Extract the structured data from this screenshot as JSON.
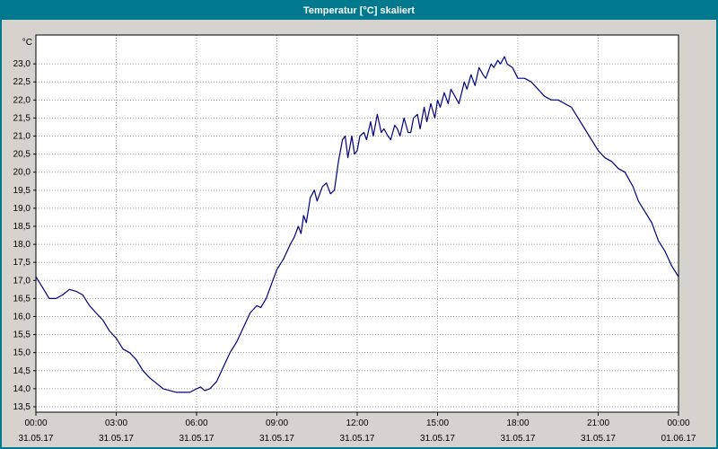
{
  "window": {
    "title": "Temperatur [°C] skaliert",
    "title_bg": "#00798F",
    "body_bg": "#D6D3CE",
    "border_color": "#00798F"
  },
  "chart_data": {
    "type": "line",
    "title": "Temperatur [°C] skaliert",
    "y_unit_label": "°C",
    "grid": "dotted",
    "plot_bg": "#FFFFFF",
    "grid_color": "#9A9A9A",
    "ylim": [
      13.35,
      23.8
    ],
    "xlim_hours": [
      0,
      24
    ],
    "y_ticks": [
      {
        "value": 23.0,
        "label": "23,0"
      },
      {
        "value": 22.5,
        "label": "22,5"
      },
      {
        "value": 22.0,
        "label": "22,0"
      },
      {
        "value": 21.5,
        "label": "21,5"
      },
      {
        "value": 21.0,
        "label": "21,0"
      },
      {
        "value": 20.5,
        "label": "20,5"
      },
      {
        "value": 20.0,
        "label": "20,0"
      },
      {
        "value": 19.5,
        "label": "19,5"
      },
      {
        "value": 19.0,
        "label": "19,0"
      },
      {
        "value": 18.5,
        "label": "18,5"
      },
      {
        "value": 18.0,
        "label": "18,0"
      },
      {
        "value": 17.5,
        "label": "17,5"
      },
      {
        "value": 17.0,
        "label": "17,0"
      },
      {
        "value": 16.5,
        "label": "16,5"
      },
      {
        "value": 16.0,
        "label": "16,0"
      },
      {
        "value": 15.5,
        "label": "15,5"
      },
      {
        "value": 15.0,
        "label": "15,0"
      },
      {
        "value": 14.5,
        "label": "14,5"
      },
      {
        "value": 14.0,
        "label": "14,0"
      },
      {
        "value": 13.5,
        "label": "13,5"
      }
    ],
    "x_ticks": [
      {
        "hour": 0,
        "time": "00:00",
        "date": "31.05.17"
      },
      {
        "hour": 3,
        "time": "03:00",
        "date": "31.05.17"
      },
      {
        "hour": 6,
        "time": "06:00",
        "date": "31.05.17"
      },
      {
        "hour": 9,
        "time": "09:00",
        "date": "31.05.17"
      },
      {
        "hour": 12,
        "time": "12:00",
        "date": "31.05.17"
      },
      {
        "hour": 15,
        "time": "15:00",
        "date": "31.05.17"
      },
      {
        "hour": 18,
        "time": "18:00",
        "date": "31.05.17"
      },
      {
        "hour": 21,
        "time": "21:00",
        "date": "31.05.17"
      },
      {
        "hour": 24,
        "time": "00:00",
        "date": "01.06.17"
      }
    ],
    "series": [
      {
        "name": "Temperatur",
        "color": "#000080",
        "points": [
          [
            0,
            17.1
          ],
          [
            0.25,
            16.8
          ],
          [
            0.5,
            16.5
          ],
          [
            0.75,
            16.5
          ],
          [
            1,
            16.6
          ],
          [
            1.25,
            16.75
          ],
          [
            1.5,
            16.7
          ],
          [
            1.75,
            16.6
          ],
          [
            2,
            16.3
          ],
          [
            2.25,
            16.1
          ],
          [
            2.5,
            15.9
          ],
          [
            2.75,
            15.6
          ],
          [
            3,
            15.4
          ],
          [
            3.25,
            15.1
          ],
          [
            3.5,
            15.0
          ],
          [
            3.75,
            14.8
          ],
          [
            4,
            14.5
          ],
          [
            4.25,
            14.3
          ],
          [
            4.5,
            14.15
          ],
          [
            4.75,
            14.0
          ],
          [
            5,
            13.95
          ],
          [
            5.25,
            13.9
          ],
          [
            5.5,
            13.9
          ],
          [
            5.75,
            13.9
          ],
          [
            6,
            14.0
          ],
          [
            6.15,
            14.05
          ],
          [
            6.3,
            13.95
          ],
          [
            6.5,
            14.0
          ],
          [
            6.75,
            14.2
          ],
          [
            7,
            14.6
          ],
          [
            7.25,
            15.0
          ],
          [
            7.5,
            15.3
          ],
          [
            7.75,
            15.7
          ],
          [
            8,
            16.1
          ],
          [
            8.25,
            16.3
          ],
          [
            8.4,
            16.25
          ],
          [
            8.6,
            16.5
          ],
          [
            8.8,
            16.9
          ],
          [
            9,
            17.3
          ],
          [
            9.25,
            17.6
          ],
          [
            9.5,
            18.0
          ],
          [
            9.65,
            18.2
          ],
          [
            9.8,
            18.5
          ],
          [
            9.9,
            18.3
          ],
          [
            10,
            18.8
          ],
          [
            10.1,
            18.6
          ],
          [
            10.25,
            19.3
          ],
          [
            10.4,
            19.5
          ],
          [
            10.5,
            19.2
          ],
          [
            10.7,
            19.6
          ],
          [
            10.85,
            19.7
          ],
          [
            11,
            19.4
          ],
          [
            11.15,
            19.5
          ],
          [
            11.3,
            20.3
          ],
          [
            11.45,
            20.9
          ],
          [
            11.55,
            21.0
          ],
          [
            11.65,
            20.4
          ],
          [
            11.8,
            21.0
          ],
          [
            11.9,
            20.5
          ],
          [
            12,
            20.6
          ],
          [
            12.1,
            21.0
          ],
          [
            12.25,
            21.1
          ],
          [
            12.35,
            20.9
          ],
          [
            12.5,
            21.4
          ],
          [
            12.6,
            21.0
          ],
          [
            12.75,
            21.6
          ],
          [
            12.9,
            21.1
          ],
          [
            13,
            21.2
          ],
          [
            13.15,
            21.0
          ],
          [
            13.25,
            20.9
          ],
          [
            13.4,
            21.3
          ],
          [
            13.5,
            21.2
          ],
          [
            13.6,
            21.0
          ],
          [
            13.75,
            21.5
          ],
          [
            13.9,
            21.1
          ],
          [
            14,
            21.1
          ],
          [
            14.1,
            21.5
          ],
          [
            14.25,
            21.6
          ],
          [
            14.35,
            21.2
          ],
          [
            14.5,
            21.8
          ],
          [
            14.6,
            21.4
          ],
          [
            14.75,
            21.9
          ],
          [
            14.9,
            21.5
          ],
          [
            15,
            22.0
          ],
          [
            15.1,
            21.8
          ],
          [
            15.25,
            22.2
          ],
          [
            15.4,
            21.9
          ],
          [
            15.5,
            22.3
          ],
          [
            15.65,
            22.1
          ],
          [
            15.8,
            21.9
          ],
          [
            16,
            22.5
          ],
          [
            16.1,
            22.3
          ],
          [
            16.25,
            22.7
          ],
          [
            16.4,
            22.4
          ],
          [
            16.55,
            22.9
          ],
          [
            16.7,
            22.7
          ],
          [
            16.8,
            22.6
          ],
          [
            17,
            23.0
          ],
          [
            17.1,
            22.9
          ],
          [
            17.25,
            23.1
          ],
          [
            17.35,
            23.0
          ],
          [
            17.5,
            23.2
          ],
          [
            17.6,
            23.0
          ],
          [
            17.8,
            22.9
          ],
          [
            18,
            22.6
          ],
          [
            18.25,
            22.6
          ],
          [
            18.5,
            22.5
          ],
          [
            18.75,
            22.3
          ],
          [
            19,
            22.1
          ],
          [
            19.25,
            22.0
          ],
          [
            19.5,
            22.0
          ],
          [
            19.75,
            21.9
          ],
          [
            20,
            21.8
          ],
          [
            20.25,
            21.5
          ],
          [
            20.5,
            21.2
          ],
          [
            20.75,
            20.9
          ],
          [
            21,
            20.6
          ],
          [
            21.25,
            20.4
          ],
          [
            21.5,
            20.3
          ],
          [
            21.75,
            20.1
          ],
          [
            22,
            20.0
          ],
          [
            22.15,
            19.8
          ],
          [
            22.3,
            19.6
          ],
          [
            22.5,
            19.2
          ],
          [
            22.75,
            18.9
          ],
          [
            23,
            18.6
          ],
          [
            23.25,
            18.1
          ],
          [
            23.5,
            17.8
          ],
          [
            23.75,
            17.4
          ],
          [
            24,
            17.1
          ]
        ]
      }
    ]
  }
}
